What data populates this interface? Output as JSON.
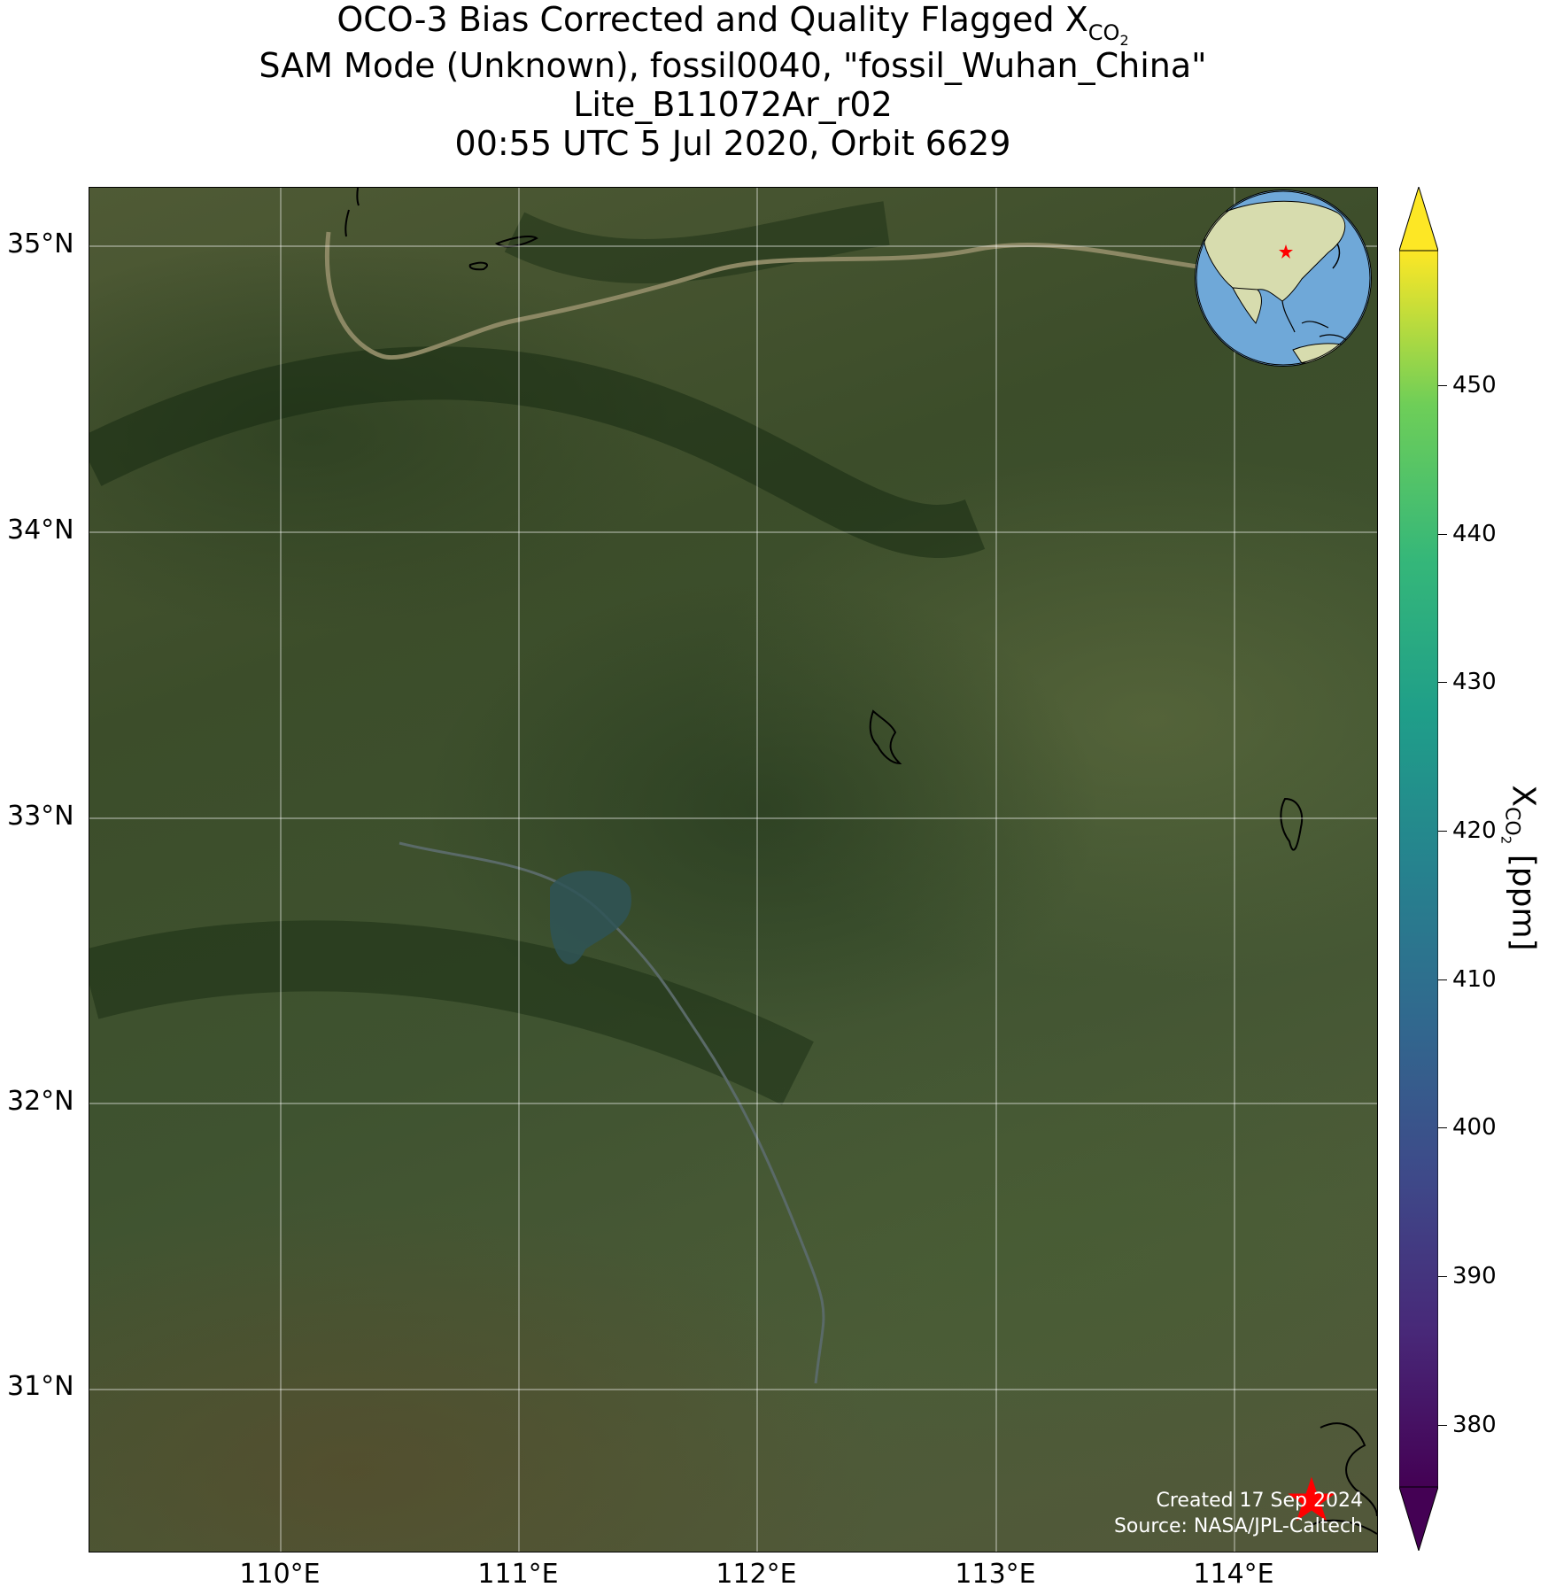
{
  "title": {
    "line1_prefix": "OCO-3 Bias Corrected and Quality Flagged X",
    "line1_sub": "CO",
    "line1_subsub": "2",
    "line2": "SAM Mode (Unknown), fossil0040, \"fossil_Wuhan_China\"",
    "line3": "Lite_B11072Ar_r02",
    "line4": "00:55 UTC 5 Jul 2020, Orbit 6629"
  },
  "map": {
    "lat_labels": [
      "35°N",
      "34°N",
      "33°N",
      "32°N",
      "31°N"
    ],
    "lon_labels": [
      "110°E",
      "111°E",
      "112°E",
      "113°E",
      "114°E"
    ],
    "extent": {
      "lon_min": 109.2,
      "lon_max": 114.6,
      "lat_min": 30.4,
      "lat_max": 35.2
    },
    "basemap": "satellite-imagery",
    "gridlines": true,
    "target_marker": {
      "icon": "red-star-icon",
      "color": "#ff0000",
      "lon": 114.3,
      "lat": 30.6
    },
    "inset_globe": {
      "icon": "globe-icon",
      "ocean_color": "#6fa8d8",
      "land_color": "#d7dcae",
      "marker_color": "#ff0000"
    }
  },
  "credit": {
    "created": "Created 17 Sep 2024",
    "source": "Source: NASA/JPL-Caltech"
  },
  "colorbar": {
    "colormap": "viridis",
    "ticks": [
      "380",
      "390",
      "400",
      "410",
      "420",
      "430",
      "440",
      "450"
    ],
    "tick_values": [
      380,
      390,
      400,
      410,
      420,
      430,
      440,
      450
    ],
    "range": [
      375,
      455
    ],
    "extend": "both",
    "label_prefix": "X",
    "label_sub": "CO",
    "label_subsub": "2",
    "label_suffix": " [ppm]"
  }
}
